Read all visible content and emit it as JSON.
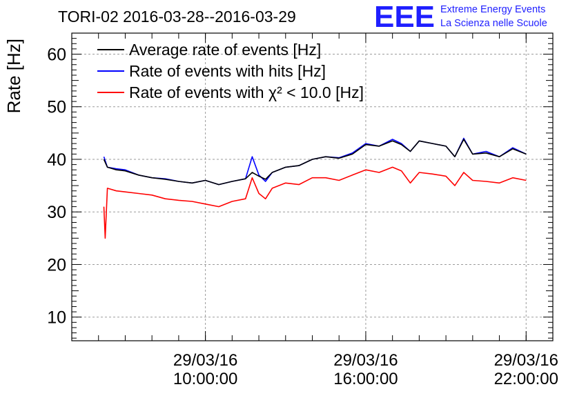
{
  "chart_data": {
    "type": "line",
    "title": "TORI-02 2016-03-28--2016-03-29",
    "ylabel": "Rate [Hz]",
    "xlabel": "",
    "ylim": [
      5.5,
      64
    ],
    "yticks": [
      10,
      20,
      30,
      40,
      50,
      60
    ],
    "xlim": [
      "2016-03-29 05:00:00",
      "2016-03-29 23:00:00"
    ],
    "x_major_ticks": [
      {
        "date": "29/03/16",
        "time": "10:00:00",
        "x": "2016-03-29 10:00:00"
      },
      {
        "date": "29/03/16",
        "time": "16:00:00",
        "x": "2016-03-29 16:00:00"
      },
      {
        "date": "29/03/16",
        "time": "22:00:00",
        "x": "2016-03-29 22:00:00"
      }
    ],
    "grid": true,
    "legend_position": "top-left",
    "series": [
      {
        "name": "Average rate of events [Hz]",
        "color": "#000000",
        "x": [
          "2016-03-29 06:12:00",
          "2016-03-29 06:20:00",
          "2016-03-29 06:40:00",
          "2016-03-29 07:00:00",
          "2016-03-29 07:30:00",
          "2016-03-29 08:00:00",
          "2016-03-29 08:30:00",
          "2016-03-29 09:00:00",
          "2016-03-29 09:30:00",
          "2016-03-29 10:00:00",
          "2016-03-29 10:30:00",
          "2016-03-29 11:00:00",
          "2016-03-29 11:30:00",
          "2016-03-29 11:45:00",
          "2016-03-29 12:00:00",
          "2016-03-29 12:15:00",
          "2016-03-29 12:30:00",
          "2016-03-29 13:00:00",
          "2016-03-29 13:30:00",
          "2016-03-29 14:00:00",
          "2016-03-29 14:30:00",
          "2016-03-29 15:00:00",
          "2016-03-29 15:30:00",
          "2016-03-29 16:00:00",
          "2016-03-29 16:30:00",
          "2016-03-29 17:00:00",
          "2016-03-29 17:20:00",
          "2016-03-29 17:40:00",
          "2016-03-29 18:00:00",
          "2016-03-29 18:30:00",
          "2016-03-29 19:00:00",
          "2016-03-29 19:20:00",
          "2016-03-29 19:40:00",
          "2016-03-29 20:00:00",
          "2016-03-29 20:30:00",
          "2016-03-29 21:00:00",
          "2016-03-29 21:30:00",
          "2016-03-29 22:00:00"
        ],
        "values": [
          40,
          38.5,
          38,
          37.8,
          37,
          36.5,
          36.2,
          35.8,
          35.5,
          36,
          35.2,
          35.8,
          36.3,
          37.5,
          36.8,
          36.2,
          37.5,
          38.5,
          38.8,
          40,
          40.5,
          40.2,
          41,
          42.8,
          42.5,
          43.5,
          42.8,
          41.5,
          43.5,
          43,
          42.5,
          40.5,
          43.8,
          41,
          41.2,
          40.5,
          42,
          41
        ]
      },
      {
        "name": "Rate of events with hits [Hz]",
        "color": "#0000ff",
        "x": [
          "2016-03-29 06:12:00",
          "2016-03-29 06:20:00",
          "2016-03-29 06:40:00",
          "2016-03-29 07:00:00",
          "2016-03-29 07:30:00",
          "2016-03-29 08:00:00",
          "2016-03-29 08:30:00",
          "2016-03-29 09:00:00",
          "2016-03-29 09:30:00",
          "2016-03-29 10:00:00",
          "2016-03-29 10:30:00",
          "2016-03-29 11:00:00",
          "2016-03-29 11:30:00",
          "2016-03-29 11:45:00",
          "2016-03-29 12:00:00",
          "2016-03-29 12:15:00",
          "2016-03-29 12:30:00",
          "2016-03-29 13:00:00",
          "2016-03-29 13:30:00",
          "2016-03-29 14:00:00",
          "2016-03-29 14:30:00",
          "2016-03-29 15:00:00",
          "2016-03-29 15:30:00",
          "2016-03-29 16:00:00",
          "2016-03-29 16:30:00",
          "2016-03-29 17:00:00",
          "2016-03-29 17:20:00",
          "2016-03-29 17:40:00",
          "2016-03-29 18:00:00",
          "2016-03-29 18:30:00",
          "2016-03-29 19:00:00",
          "2016-03-29 19:20:00",
          "2016-03-29 19:40:00",
          "2016-03-29 20:00:00",
          "2016-03-29 20:30:00",
          "2016-03-29 21:00:00",
          "2016-03-29 21:30:00",
          "2016-03-29 22:00:00"
        ],
        "values": [
          40.5,
          38.5,
          38.2,
          38,
          37,
          36.5,
          36.3,
          35.8,
          35.5,
          36,
          35.2,
          35.8,
          36.3,
          40.5,
          37,
          35.8,
          37.5,
          38.5,
          38.8,
          40,
          40.5,
          40.3,
          41.2,
          43,
          42.5,
          43.8,
          43,
          41.5,
          43.5,
          43,
          42.5,
          40.5,
          44,
          41,
          41.5,
          40.5,
          42.2,
          41
        ]
      },
      {
        "name": "Rate of events with χ² < 10.0 [Hz]",
        "color": "#ff0000",
        "x": [
          "2016-03-29 06:12:00",
          "2016-03-29 06:15:00",
          "2016-03-29 06:20:00",
          "2016-03-29 06:40:00",
          "2016-03-29 07:00:00",
          "2016-03-29 07:30:00",
          "2016-03-29 08:00:00",
          "2016-03-29 08:30:00",
          "2016-03-29 09:00:00",
          "2016-03-29 09:30:00",
          "2016-03-29 10:00:00",
          "2016-03-29 10:30:00",
          "2016-03-29 11:00:00",
          "2016-03-29 11:30:00",
          "2016-03-29 11:45:00",
          "2016-03-29 12:00:00",
          "2016-03-29 12:15:00",
          "2016-03-29 12:30:00",
          "2016-03-29 13:00:00",
          "2016-03-29 13:30:00",
          "2016-03-29 14:00:00",
          "2016-03-29 14:30:00",
          "2016-03-29 15:00:00",
          "2016-03-29 15:30:00",
          "2016-03-29 16:00:00",
          "2016-03-29 16:30:00",
          "2016-03-29 17:00:00",
          "2016-03-29 17:20:00",
          "2016-03-29 17:40:00",
          "2016-03-29 18:00:00",
          "2016-03-29 18:30:00",
          "2016-03-29 19:00:00",
          "2016-03-29 19:20:00",
          "2016-03-29 19:40:00",
          "2016-03-29 20:00:00",
          "2016-03-29 20:30:00",
          "2016-03-29 21:00:00",
          "2016-03-29 21:30:00",
          "2016-03-29 22:00:00"
        ],
        "values": [
          31,
          25,
          34.5,
          34,
          33.8,
          33.5,
          33.2,
          32.5,
          32.2,
          32,
          31.5,
          31,
          32,
          32.5,
          36.5,
          33.5,
          32.5,
          34.5,
          35.5,
          35.2,
          36.5,
          36.5,
          36,
          37,
          38,
          37.5,
          38.5,
          37.8,
          35.5,
          37.5,
          37.2,
          36.8,
          35,
          37.5,
          36,
          35.8,
          35.5,
          36.5,
          36
        ]
      }
    ]
  },
  "logo": {
    "mark_text": "EEE",
    "mark_color": "#1f1fff",
    "line1": "Extreme Energy Events",
    "line2": "La Scienza nelle Scuole"
  }
}
